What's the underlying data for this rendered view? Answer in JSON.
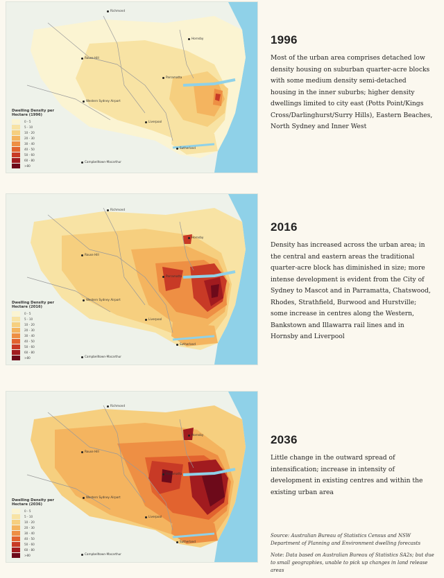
{
  "panels": [
    {
      "year": "1996",
      "legend_title": "Dwelling Density per Hectare (1996)",
      "description": "Most of the urban area comprises detached low density housing on suburban quarter-acre blocks with some medium density semi-detached housing in the inner suburbs; higher density dwellings limited to city east (Potts Point/Kings Cross/Darlinghurst/Surry Hills), Eastern Beaches, North Sydney and Inner West"
    },
    {
      "year": "2016",
      "legend_title": "Dwelling Density per Hectare (2016)",
      "description": "Density has increased across the urban area; in the central and eastern areas the traditional quarter-acre block has diminished in size; more intense development is evident from the City of Sydney to Mascot and in Parramatta, Chatswood, Rhodes, Strathfield, Burwood and Hurstville; some increase in centres along the Western, Bankstown and Illawarra rail lines and in Hornsby and Liverpool"
    },
    {
      "year": "2036",
      "legend_title": "Dwelling Density per Hectare (2036)",
      "description": "Little change in the outward spread of intensification; increase in intensity of development in existing centres and within the existing urban area"
    }
  ],
  "legend": {
    "categories": [
      "0 - 5",
      "5 - 10",
      "10 - 20",
      "20 - 30",
      "30 - 40",
      "40 - 50",
      "50 - 60",
      "60 - 80",
      ">80"
    ],
    "colors": [
      "#fbf4d2",
      "#f8e3a4",
      "#f6cf7f",
      "#f4b45f",
      "#ee8f44",
      "#e2632f",
      "#c83a26",
      "#a11b1f",
      "#6d0a1a"
    ]
  },
  "places": {
    "richmond": "Richmond",
    "hornsby": "Hornsby",
    "rouse_hill": "Rouse Hill",
    "parramatta": "Parramatta",
    "western_sydney_airport": "Western Sydney Airport",
    "liverpool": "Liverpool",
    "campbelltown": "Campbelltown-Macarthur",
    "sutherland": "Sutherland"
  },
  "source": {
    "source_text": "Source: Australian Bureau of Statistics Census and NSW Department of Planning and Environment dwelling forecasts",
    "note_text": "Note: Data based on Australian Bureau of Statistics SA2s; but due to small geographies, unable to pick up changes in land release areas"
  }
}
